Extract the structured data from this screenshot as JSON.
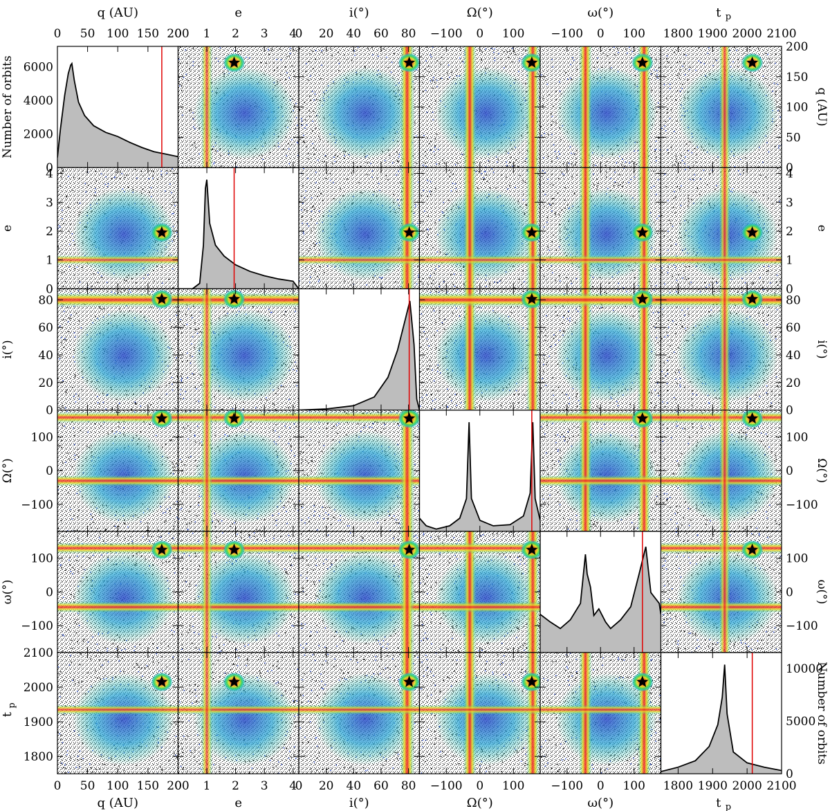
{
  "chart_data": {
    "type": "corner",
    "colors": {
      "histogram_fill": "#bdbdbd",
      "marker_line": "#e00000",
      "star": "#000000",
      "density_scale": [
        "#000000",
        "#2b4cc8",
        "#2aa6d6",
        "#27c9a0",
        "#49d64a",
        "#e9e02a",
        "#f28a1c",
        "#f01f2a",
        "#ff2aa0"
      ]
    },
    "parameters": [
      {
        "key": "q",
        "label": "q (AU)",
        "range": [
          0,
          200
        ],
        "ticks": [
          "0",
          "50",
          "100",
          "150",
          "200"
        ],
        "marked": 173
      },
      {
        "key": "e",
        "label": "e",
        "range": [
          0,
          4.2
        ],
        "ticks": [
          "0",
          "1",
          "2",
          "3",
          "4"
        ],
        "marked": 1.95
      },
      {
        "key": "i",
        "label": "i(°)",
        "range": [
          0,
          88
        ],
        "ticks": [
          "0",
          "20",
          "40",
          "60",
          "80"
        ],
        "marked": 80.5
      },
      {
        "key": "Omega",
        "label": "Ω(°)",
        "range": [
          -180,
          180
        ],
        "ticks": [
          "-100",
          "0",
          "100"
        ],
        "marked": 155
      },
      {
        "key": "omega",
        "label": "ω(°)",
        "range": [
          -180,
          180
        ],
        "ticks": [
          "-100",
          "0",
          "100"
        ],
        "marked": 125
      },
      {
        "key": "tp",
        "label": "tp",
        "label_main": "t",
        "label_sub": "p",
        "range": [
          1750,
          2100
        ],
        "ticks": [
          "1800",
          "1900",
          "2000",
          "2100"
        ],
        "marked": 2015
      }
    ],
    "histograms": {
      "left_axis_label": "Number of orbits",
      "left_axis_ticks": [
        "0",
        "2000",
        "4000",
        "6000"
      ],
      "left_axis_max": 6500,
      "right_axis_label": "Number of orbits",
      "right_axis_ticks": [
        "0",
        "5000",
        "10000"
      ],
      "right_axis_max": 11500,
      "q": [
        [
          0,
          600
        ],
        [
          5,
          2300
        ],
        [
          12,
          4300
        ],
        [
          18,
          5600
        ],
        [
          22,
          6100
        ],
        [
          24,
          6200
        ],
        [
          28,
          5200
        ],
        [
          35,
          3900
        ],
        [
          45,
          3100
        ],
        [
          60,
          2500
        ],
        [
          80,
          2100
        ],
        [
          100,
          1850
        ],
        [
          120,
          1500
        ],
        [
          140,
          1200
        ],
        [
          160,
          950
        ],
        [
          180,
          800
        ],
        [
          200,
          650
        ]
      ],
      "e": [
        [
          0,
          0
        ],
        [
          0.5,
          0
        ],
        [
          0.75,
          0.05
        ],
        [
          0.88,
          0.4
        ],
        [
          0.95,
          0.92
        ],
        [
          1.0,
          1.0
        ],
        [
          1.1,
          0.6
        ],
        [
          1.3,
          0.4
        ],
        [
          1.6,
          0.3
        ],
        [
          2.0,
          0.22
        ],
        [
          2.5,
          0.16
        ],
        [
          3.0,
          0.12
        ],
        [
          3.5,
          0.09
        ],
        [
          4.0,
          0.07
        ],
        [
          4.2,
          0
        ]
      ],
      "i": [
        [
          0,
          0
        ],
        [
          20,
          0.01
        ],
        [
          40,
          0.04
        ],
        [
          55,
          0.12
        ],
        [
          65,
          0.3
        ],
        [
          72,
          0.55
        ],
        [
          78,
          0.85
        ],
        [
          81,
          1.0
        ],
        [
          84,
          0.6
        ],
        [
          86,
          0.1
        ],
        [
          88,
          0
        ]
      ],
      "Omega": [
        [
          -180,
          0.12
        ],
        [
          -160,
          0.05
        ],
        [
          -130,
          0.02
        ],
        [
          -90,
          0.05
        ],
        [
          -60,
          0.12
        ],
        [
          -40,
          0.3
        ],
        [
          -32,
          1.0
        ],
        [
          -25,
          0.3
        ],
        [
          0,
          0.1
        ],
        [
          40,
          0.05
        ],
        [
          90,
          0.06
        ],
        [
          130,
          0.14
        ],
        [
          150,
          0.35
        ],
        [
          158,
          1.0
        ],
        [
          165,
          0.3
        ],
        [
          180,
          0.1
        ]
      ],
      "omega": [
        [
          -180,
          0.35
        ],
        [
          -150,
          0.28
        ],
        [
          -120,
          0.22
        ],
        [
          -90,
          0.3
        ],
        [
          -60,
          0.45
        ],
        [
          -45,
          0.9
        ],
        [
          -40,
          0.72
        ],
        [
          -30,
          0.6
        ],
        [
          -20,
          0.34
        ],
        [
          -5,
          0.4
        ],
        [
          15,
          0.28
        ],
        [
          30,
          0.22
        ],
        [
          60,
          0.3
        ],
        [
          90,
          0.42
        ],
        [
          115,
          0.72
        ],
        [
          135,
          0.97
        ],
        [
          150,
          0.55
        ],
        [
          175,
          0.45
        ],
        [
          180,
          0.35
        ]
      ],
      "tp": [
        [
          1750,
          0.02
        ],
        [
          1800,
          0.06
        ],
        [
          1850,
          0.12
        ],
        [
          1890,
          0.25
        ],
        [
          1915,
          0.45
        ],
        [
          1928,
          0.7
        ],
        [
          1935,
          1.0
        ],
        [
          1942,
          0.55
        ],
        [
          1960,
          0.2
        ],
        [
          2000,
          0.1
        ],
        [
          2050,
          0.06
        ],
        [
          2100,
          0.03
        ]
      ]
    }
  }
}
